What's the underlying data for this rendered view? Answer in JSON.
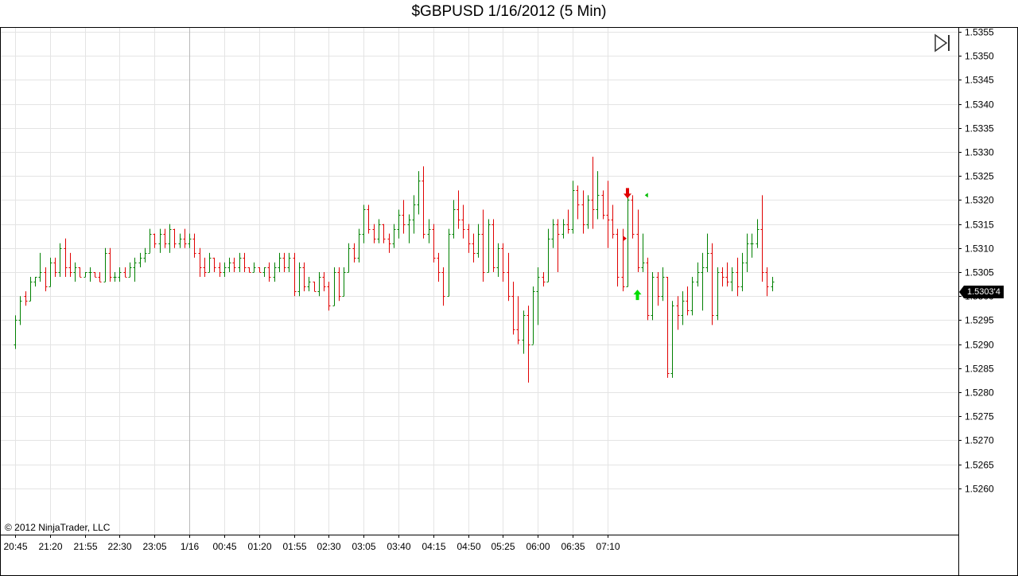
{
  "title": "$GBPUSD  1/16/2012 (5 Min)",
  "copyright": "© 2012 NinjaTrader, LLC",
  "last_price_label": "1.5303'4",
  "colors": {
    "up": "#008000",
    "down": "#e00000",
    "grid": "#e4e4e4",
    "axis": "#000000"
  },
  "icons": {
    "goto_end": "skip-to-end-icon",
    "signal_down": "red-down-arrow-icon",
    "signal_up": "green-up-arrow-icon"
  },
  "chart_data": {
    "type": "ohlc",
    "title": "$GBPUSD  1/16/2012 (5 Min)",
    "ylim": [
      1.5255,
      1.5355
    ],
    "y_ticks": [
      "1.5355",
      "1.5350",
      "1.5345",
      "1.5340",
      "1.5335",
      "1.5330",
      "1.5325",
      "1.5320",
      "1.5315",
      "1.5310",
      "1.5305",
      "1.5300",
      "1.5295",
      "1.5290",
      "1.5285",
      "1.5280",
      "1.5275",
      "1.5270",
      "1.5265",
      "1.5260"
    ],
    "x_ticks": [
      "20:45",
      "21:20",
      "21:55",
      "22:30",
      "23:05",
      "1/16",
      "00:45",
      "01:20",
      "01:55",
      "02:30",
      "03:05",
      "03:40",
      "04:15",
      "04:50",
      "05:25",
      "06:00",
      "06:35",
      "07:10"
    ],
    "last_price": 1.53034,
    "bars": [
      {
        "o": 1.529,
        "h": 1.5296,
        "l": 1.5289,
        "c": 1.5295
      },
      {
        "o": 1.5295,
        "h": 1.53,
        "l": 1.5294,
        "c": 1.5299
      },
      {
        "o": 1.53,
        "h": 1.5301,
        "l": 1.5298,
        "c": 1.5299
      },
      {
        "o": 1.5299,
        "h": 1.5304,
        "l": 1.5299,
        "c": 1.5303
      },
      {
        "o": 1.5303,
        "h": 1.5304,
        "l": 1.5302,
        "c": 1.5304
      },
      {
        "o": 1.5304,
        "h": 1.5309,
        "l": 1.5303,
        "c": 1.5305
      },
      {
        "o": 1.5305,
        "h": 1.5306,
        "l": 1.5301,
        "c": 1.5302
      },
      {
        "o": 1.5302,
        "h": 1.5308,
        "l": 1.5302,
        "c": 1.5307
      },
      {
        "o": 1.5307,
        "h": 1.5308,
        "l": 1.5304,
        "c": 1.5305
      },
      {
        "o": 1.5305,
        "h": 1.5311,
        "l": 1.5304,
        "c": 1.531
      },
      {
        "o": 1.531,
        "h": 1.5312,
        "l": 1.5304,
        "c": 1.5306
      },
      {
        "o": 1.5306,
        "h": 1.5309,
        "l": 1.5304,
        "c": 1.5305
      },
      {
        "o": 1.5305,
        "h": 1.5307,
        "l": 1.5303,
        "c": 1.5306
      },
      {
        "o": 1.5306,
        "h": 1.5306,
        "l": 1.5304,
        "c": 1.5304
      },
      {
        "o": 1.5304,
        "h": 1.5305,
        "l": 1.5304,
        "c": 1.5305
      },
      {
        "o": 1.5305,
        "h": 1.5306,
        "l": 1.5303,
        "c": 1.5305
      },
      {
        "o": 1.5305,
        "h": 1.5305,
        "l": 1.5304,
        "c": 1.5304
      },
      {
        "o": 1.5304,
        "h": 1.5305,
        "l": 1.5303,
        "c": 1.5303
      },
      {
        "o": 1.5303,
        "h": 1.531,
        "l": 1.5303,
        "c": 1.5309
      },
      {
        "o": 1.5309,
        "h": 1.531,
        "l": 1.5303,
        "c": 1.5304
      },
      {
        "o": 1.5304,
        "h": 1.5305,
        "l": 1.5303,
        "c": 1.5304
      },
      {
        "o": 1.5304,
        "h": 1.5306,
        "l": 1.5303,
        "c": 1.5305
      },
      {
        "o": 1.5305,
        "h": 1.5306,
        "l": 1.5304,
        "c": 1.5304
      },
      {
        "o": 1.5304,
        "h": 1.5307,
        "l": 1.5304,
        "c": 1.5306
      },
      {
        "o": 1.5306,
        "h": 1.5308,
        "l": 1.5303,
        "c": 1.5307
      },
      {
        "o": 1.5307,
        "h": 1.5309,
        "l": 1.5306,
        "c": 1.5308
      },
      {
        "o": 1.5308,
        "h": 1.531,
        "l": 1.5307,
        "c": 1.5309
      },
      {
        "o": 1.5309,
        "h": 1.5314,
        "l": 1.5309,
        "c": 1.5313
      },
      {
        "o": 1.5313,
        "h": 1.5313,
        "l": 1.531,
        "c": 1.5311
      },
      {
        "o": 1.5311,
        "h": 1.5314,
        "l": 1.5309,
        "c": 1.5313
      },
      {
        "o": 1.5313,
        "h": 1.5314,
        "l": 1.531,
        "c": 1.5311
      },
      {
        "o": 1.5311,
        "h": 1.5315,
        "l": 1.5309,
        "c": 1.5314
      },
      {
        "o": 1.5314,
        "h": 1.5314,
        "l": 1.531,
        "c": 1.5311
      },
      {
        "o": 1.5311,
        "h": 1.5313,
        "l": 1.531,
        "c": 1.5312
      },
      {
        "o": 1.5312,
        "h": 1.5314,
        "l": 1.531,
        "c": 1.5311
      },
      {
        "o": 1.5311,
        "h": 1.5313,
        "l": 1.531,
        "c": 1.5312
      },
      {
        "o": 1.5312,
        "h": 1.5313,
        "l": 1.5308,
        "c": 1.5309
      },
      {
        "o": 1.5309,
        "h": 1.531,
        "l": 1.5304,
        "c": 1.5306
      },
      {
        "o": 1.5306,
        "h": 1.5308,
        "l": 1.5304,
        "c": 1.5305
      },
      {
        "o": 1.5305,
        "h": 1.5309,
        "l": 1.5305,
        "c": 1.5308
      },
      {
        "o": 1.5308,
        "h": 1.5308,
        "l": 1.5305,
        "c": 1.5306
      },
      {
        "o": 1.5306,
        "h": 1.5307,
        "l": 1.5304,
        "c": 1.5305
      },
      {
        "o": 1.5305,
        "h": 1.5307,
        "l": 1.5304,
        "c": 1.5306
      },
      {
        "o": 1.5306,
        "h": 1.5308,
        "l": 1.5305,
        "c": 1.5307
      },
      {
        "o": 1.5307,
        "h": 1.5308,
        "l": 1.5305,
        "c": 1.5306
      },
      {
        "o": 1.5306,
        "h": 1.5309,
        "l": 1.5305,
        "c": 1.5308
      },
      {
        "o": 1.5308,
        "h": 1.5309,
        "l": 1.5305,
        "c": 1.5306
      },
      {
        "o": 1.5306,
        "h": 1.5306,
        "l": 1.5305,
        "c": 1.5305
      },
      {
        "o": 1.5305,
        "h": 1.5307,
        "l": 1.5305,
        "c": 1.5306
      },
      {
        "o": 1.5306,
        "h": 1.5306,
        "l": 1.5305,
        "c": 1.5305
      },
      {
        "o": 1.5305,
        "h": 1.5306,
        "l": 1.5304,
        "c": 1.5306
      },
      {
        "o": 1.5306,
        "h": 1.5307,
        "l": 1.5303,
        "c": 1.5304
      },
      {
        "o": 1.5304,
        "h": 1.5307,
        "l": 1.5303,
        "c": 1.5306
      },
      {
        "o": 1.5306,
        "h": 1.5309,
        "l": 1.5305,
        "c": 1.5308
      },
      {
        "o": 1.5308,
        "h": 1.5309,
        "l": 1.5305,
        "c": 1.5306
      },
      {
        "o": 1.5306,
        "h": 1.5309,
        "l": 1.5305,
        "c": 1.5308
      },
      {
        "o": 1.5308,
        "h": 1.5309,
        "l": 1.53,
        "c": 1.5301
      },
      {
        "o": 1.5301,
        "h": 1.5307,
        "l": 1.53,
        "c": 1.5306
      },
      {
        "o": 1.5306,
        "h": 1.5307,
        "l": 1.5301,
        "c": 1.5302
      },
      {
        "o": 1.5302,
        "h": 1.5304,
        "l": 1.5301,
        "c": 1.5303
      },
      {
        "o": 1.5303,
        "h": 1.5303,
        "l": 1.5301,
        "c": 1.5301
      },
      {
        "o": 1.5301,
        "h": 1.5305,
        "l": 1.53,
        "c": 1.5304
      },
      {
        "o": 1.5304,
        "h": 1.5305,
        "l": 1.5301,
        "c": 1.5302
      },
      {
        "o": 1.5302,
        "h": 1.5303,
        "l": 1.5297,
        "c": 1.5298
      },
      {
        "o": 1.5298,
        "h": 1.5306,
        "l": 1.5298,
        "c": 1.5305
      },
      {
        "o": 1.5305,
        "h": 1.5306,
        "l": 1.5299,
        "c": 1.53
      },
      {
        "o": 1.53,
        "h": 1.5306,
        "l": 1.53,
        "c": 1.5305
      },
      {
        "o": 1.5305,
        "h": 1.5311,
        "l": 1.5305,
        "c": 1.531
      },
      {
        "o": 1.531,
        "h": 1.5311,
        "l": 1.5307,
        "c": 1.5308
      },
      {
        "o": 1.5308,
        "h": 1.5314,
        "l": 1.5307,
        "c": 1.5313
      },
      {
        "o": 1.5313,
        "h": 1.5319,
        "l": 1.5311,
        "c": 1.5318
      },
      {
        "o": 1.5318,
        "h": 1.5319,
        "l": 1.5313,
        "c": 1.5314
      },
      {
        "o": 1.5314,
        "h": 1.5315,
        "l": 1.5311,
        "c": 1.5312
      },
      {
        "o": 1.5312,
        "h": 1.5316,
        "l": 1.5311,
        "c": 1.5315
      },
      {
        "o": 1.5315,
        "h": 1.5315,
        "l": 1.5311,
        "c": 1.5312
      },
      {
        "o": 1.5312,
        "h": 1.5313,
        "l": 1.5309,
        "c": 1.5311
      },
      {
        "o": 1.5311,
        "h": 1.5315,
        "l": 1.531,
        "c": 1.5314
      },
      {
        "o": 1.5314,
        "h": 1.5318,
        "l": 1.5312,
        "c": 1.5317
      },
      {
        "o": 1.5317,
        "h": 1.532,
        "l": 1.5313,
        "c": 1.5315
      },
      {
        "o": 1.5315,
        "h": 1.5317,
        "l": 1.5311,
        "c": 1.5316
      },
      {
        "o": 1.5316,
        "h": 1.5321,
        "l": 1.5313,
        "c": 1.5319
      },
      {
        "o": 1.5319,
        "h": 1.5326,
        "l": 1.5317,
        "c": 1.5324
      },
      {
        "o": 1.5324,
        "h": 1.5327,
        "l": 1.5312,
        "c": 1.5313
      },
      {
        "o": 1.5313,
        "h": 1.5316,
        "l": 1.5311,
        "c": 1.5314
      },
      {
        "o": 1.5314,
        "h": 1.5315,
        "l": 1.5307,
        "c": 1.5308
      },
      {
        "o": 1.5308,
        "h": 1.5309,
        "l": 1.5303,
        "c": 1.5305
      },
      {
        "o": 1.5305,
        "h": 1.5306,
        "l": 1.5298,
        "c": 1.53
      },
      {
        "o": 1.53,
        "h": 1.5314,
        "l": 1.53,
        "c": 1.5313
      },
      {
        "o": 1.5313,
        "h": 1.532,
        "l": 1.5312,
        "c": 1.5318
      },
      {
        "o": 1.5318,
        "h": 1.5322,
        "l": 1.5314,
        "c": 1.5316
      },
      {
        "o": 1.5316,
        "h": 1.5319,
        "l": 1.5312,
        "c": 1.5314
      },
      {
        "o": 1.5314,
        "h": 1.5315,
        "l": 1.5309,
        "c": 1.5311
      },
      {
        "o": 1.5311,
        "h": 1.5313,
        "l": 1.5307,
        "c": 1.5309
      },
      {
        "o": 1.5309,
        "h": 1.5315,
        "l": 1.5308,
        "c": 1.5313
      },
      {
        "o": 1.5313,
        "h": 1.5318,
        "l": 1.5303,
        "c": 1.5305
      },
      {
        "o": 1.5305,
        "h": 1.5316,
        "l": 1.5305,
        "c": 1.5315
      },
      {
        "o": 1.5315,
        "h": 1.5316,
        "l": 1.5305,
        "c": 1.5306
      },
      {
        "o": 1.5306,
        "h": 1.5311,
        "l": 1.5304,
        "c": 1.531
      },
      {
        "o": 1.531,
        "h": 1.5311,
        "l": 1.5303,
        "c": 1.5305
      },
      {
        "o": 1.5305,
        "h": 1.5309,
        "l": 1.5299,
        "c": 1.53
      },
      {
        "o": 1.53,
        "h": 1.5303,
        "l": 1.5292,
        "c": 1.5293
      },
      {
        "o": 1.5293,
        "h": 1.53,
        "l": 1.529,
        "c": 1.5291
      },
      {
        "o": 1.5291,
        "h": 1.5297,
        "l": 1.5288,
        "c": 1.5296
      },
      {
        "o": 1.5296,
        "h": 1.5298,
        "l": 1.5282,
        "c": 1.529
      },
      {
        "o": 1.529,
        "h": 1.5302,
        "l": 1.529,
        "c": 1.5301
      },
      {
        "o": 1.5301,
        "h": 1.5306,
        "l": 1.5294,
        "c": 1.5304
      },
      {
        "o": 1.5304,
        "h": 1.5305,
        "l": 1.5302,
        "c": 1.5303
      },
      {
        "o": 1.5303,
        "h": 1.5314,
        "l": 1.5303,
        "c": 1.5312
      },
      {
        "o": 1.5312,
        "h": 1.5316,
        "l": 1.531,
        "c": 1.5315
      },
      {
        "o": 1.5315,
        "h": 1.5316,
        "l": 1.5305,
        "c": 1.5313
      },
      {
        "o": 1.5313,
        "h": 1.5316,
        "l": 1.5312,
        "c": 1.5315
      },
      {
        "o": 1.5315,
        "h": 1.5318,
        "l": 1.5313,
        "c": 1.5314
      },
      {
        "o": 1.5314,
        "h": 1.5324,
        "l": 1.5313,
        "c": 1.5322
      },
      {
        "o": 1.5322,
        "h": 1.5323,
        "l": 1.5316,
        "c": 1.5319
      },
      {
        "o": 1.5319,
        "h": 1.5322,
        "l": 1.5313,
        "c": 1.5315
      },
      {
        "o": 1.5315,
        "h": 1.5321,
        "l": 1.5314,
        "c": 1.532
      },
      {
        "o": 1.532,
        "h": 1.5329,
        "l": 1.5314,
        "c": 1.5318
      },
      {
        "o": 1.5318,
        "h": 1.5326,
        "l": 1.5316,
        "c": 1.5321
      },
      {
        "o": 1.5321,
        "h": 1.5322,
        "l": 1.5316,
        "c": 1.5317
      },
      {
        "o": 1.5317,
        "h": 1.5324,
        "l": 1.531,
        "c": 1.5316
      },
      {
        "o": 1.5316,
        "h": 1.5319,
        "l": 1.5312,
        "c": 1.5313
      },
      {
        "o": 1.5313,
        "h": 1.5314,
        "l": 1.5302,
        "c": 1.5304
      },
      {
        "o": 1.5304,
        "h": 1.5314,
        "l": 1.5301,
        "c": 1.5302
      },
      {
        "o": 1.5302,
        "h": 1.5321,
        "l": 1.5302,
        "c": 1.532
      },
      {
        "o": 1.532,
        "h": 1.5321,
        "l": 1.5312,
        "c": 1.5313
      },
      {
        "o": 1.5313,
        "h": 1.5318,
        "l": 1.5305,
        "c": 1.5306
      },
      {
        "o": 1.5306,
        "h": 1.5313,
        "l": 1.5305,
        "c": 1.5307
      },
      {
        "o": 1.5307,
        "h": 1.5308,
        "l": 1.5295,
        "c": 1.5296
      },
      {
        "o": 1.5296,
        "h": 1.5305,
        "l": 1.5295,
        "c": 1.5304
      },
      {
        "o": 1.5304,
        "h": 1.5305,
        "l": 1.5298,
        "c": 1.53
      },
      {
        "o": 1.53,
        "h": 1.5306,
        "l": 1.5299,
        "c": 1.5304
      },
      {
        "o": 1.5304,
        "h": 1.5304,
        "l": 1.5283,
        "c": 1.5284
      },
      {
        "o": 1.5284,
        "h": 1.5299,
        "l": 1.5283,
        "c": 1.5298
      },
      {
        "o": 1.5298,
        "h": 1.53,
        "l": 1.5293,
        "c": 1.5296
      },
      {
        "o": 1.5296,
        "h": 1.5301,
        "l": 1.5294,
        "c": 1.5299
      },
      {
        "o": 1.5299,
        "h": 1.5302,
        "l": 1.5296,
        "c": 1.5297
      },
      {
        "o": 1.5297,
        "h": 1.5304,
        "l": 1.5296,
        "c": 1.5303
      },
      {
        "o": 1.5303,
        "h": 1.5307,
        "l": 1.5302,
        "c": 1.5305
      },
      {
        "o": 1.5305,
        "h": 1.5309,
        "l": 1.5297,
        "c": 1.5306
      },
      {
        "o": 1.5306,
        "h": 1.5313,
        "l": 1.5305,
        "c": 1.5309
      },
      {
        "o": 1.5309,
        "h": 1.5311,
        "l": 1.5294,
        "c": 1.5296
      },
      {
        "o": 1.5296,
        "h": 1.5306,
        "l": 1.5295,
        "c": 1.5305
      },
      {
        "o": 1.5305,
        "h": 1.5306,
        "l": 1.5302,
        "c": 1.5304
      },
      {
        "o": 1.5304,
        "h": 1.5307,
        "l": 1.5302,
        "c": 1.5303
      },
      {
        "o": 1.5303,
        "h": 1.5306,
        "l": 1.5301,
        "c": 1.5305
      },
      {
        "o": 1.5305,
        "h": 1.5308,
        "l": 1.53,
        "c": 1.5302
      },
      {
        "o": 1.5302,
        "h": 1.5309,
        "l": 1.5301,
        "c": 1.5307
      },
      {
        "o": 1.5307,
        "h": 1.5313,
        "l": 1.5305,
        "c": 1.5311
      },
      {
        "o": 1.5311,
        "h": 1.5313,
        "l": 1.5308,
        "c": 1.5311
      },
      {
        "o": 1.5311,
        "h": 1.5316,
        "l": 1.531,
        "c": 1.5314
      },
      {
        "o": 1.5314,
        "h": 1.5321,
        "l": 1.5303,
        "c": 1.5305
      },
      {
        "o": 1.5305,
        "h": 1.5306,
        "l": 1.53,
        "c": 1.5302
      },
      {
        "o": 1.5302,
        "h": 1.5304,
        "l": 1.5301,
        "c": 1.5303
      }
    ],
    "signals": [
      {
        "bar": 123,
        "type": "short-entry",
        "price": 1.5321
      },
      {
        "bar": 123,
        "type": "exit-short-marker",
        "price": 1.5312
      },
      {
        "bar": 125,
        "type": "long-entry",
        "price": 1.5302
      },
      {
        "bar": 126,
        "type": "exit-long-marker",
        "price": 1.5321
      }
    ]
  }
}
